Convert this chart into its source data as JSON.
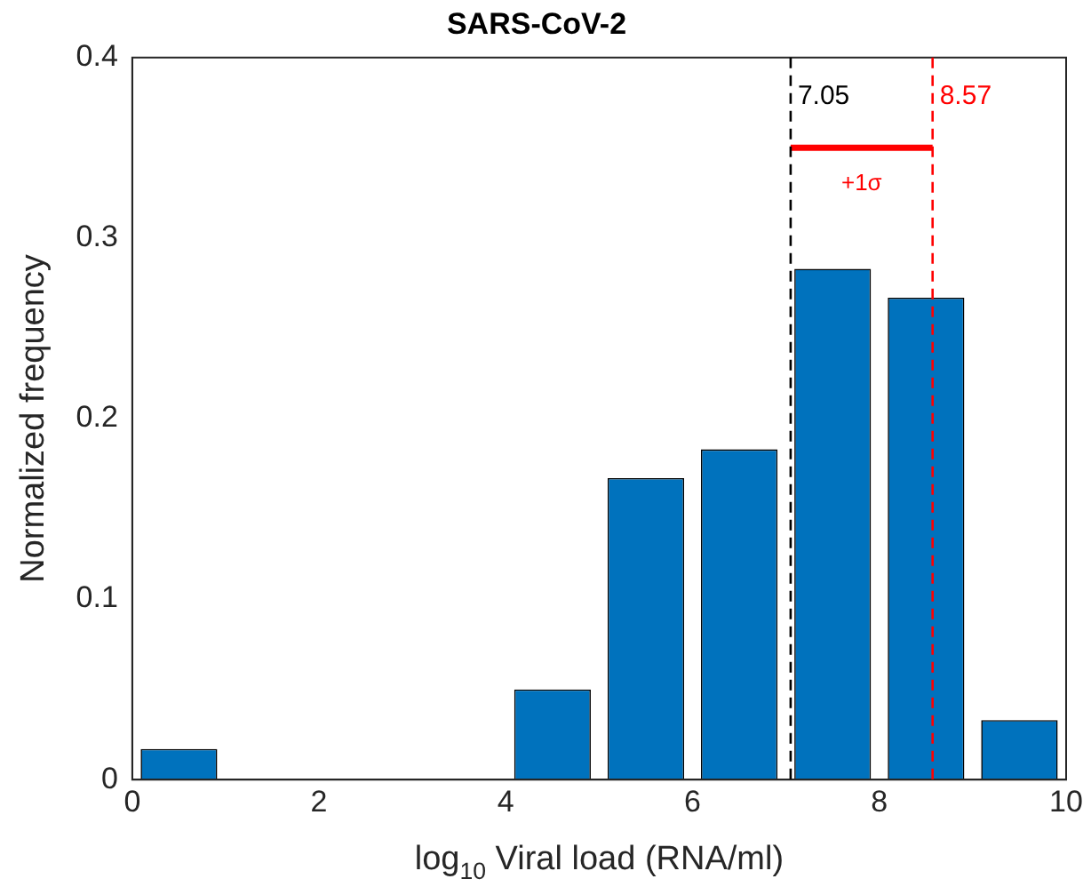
{
  "chart_data": {
    "type": "histogram",
    "title": "SARS-CoV-2",
    "xlabel": "log$_{10}$ Viral load (RNA/ml)",
    "ylabel": "Normalized frequency",
    "bins": [
      0,
      1,
      2,
      3,
      4,
      5,
      6,
      7,
      8,
      9,
      10
    ],
    "series": [
      {
        "color": "#0072bd",
        "values": [
          0.017,
          0,
          0,
          0,
          0.05,
          0.167,
          0.183,
          0.283,
          0.267,
          0.033
        ]
      },
      {
        "type": "line",
        "color": "#ff0000",
        "x": [
          7.05,
          8.57
        ],
        "values": [
          0.35,
          0.35
        ]
      }
    ],
    "xlim": [
      0,
      10
    ],
    "xticks": [
      0,
      2,
      4,
      6,
      8,
      10
    ],
    "ylim": [
      0,
      0.4
    ],
    "yticks": [
      0,
      0.1,
      0.2,
      0.3,
      0.4
    ],
    "ref_lines": [
      {
        "axis": "x",
        "value": 7.05,
        "label": "7.05",
        "color": "#000000",
        "line_style": "dashed"
      },
      {
        "axis": "x",
        "value": 8.57,
        "label": "8.57",
        "color": "#ff0000",
        "line_style": "dashed"
      }
    ],
    "annotations": [
      "+1σ"
    ],
    "grid": false,
    "legend": false
  }
}
